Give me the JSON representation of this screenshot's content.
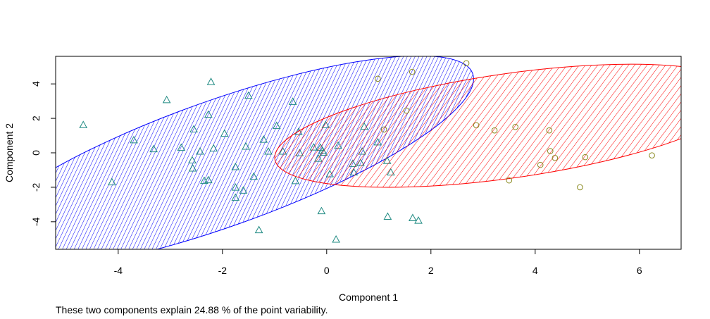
{
  "chart_data": {
    "type": "scatter",
    "title": "",
    "xlabel": "Component 1",
    "ylabel": "Component 2",
    "xlim": [
      -5.2,
      6.8
    ],
    "ylim": [
      -5.6,
      5.6
    ],
    "xticks": [
      -4,
      -2,
      0,
      2,
      4,
      6
    ],
    "yticks": [
      -4,
      -2,
      0,
      2,
      4
    ],
    "grid": false,
    "caption": "These two components explain 24.88 % of the point variability.",
    "clusters": [
      {
        "marker": "triangle",
        "color": "#0000ff",
        "point_color": "#1f8a82",
        "ellipse": {
          "cx": -2.05,
          "cy": -0.63,
          "rx": 5.15,
          "ry": 3.66,
          "rotation_deg": -19.6
        },
        "points": [
          [
            -4.67,
            1.6
          ],
          [
            -4.12,
            -1.72
          ],
          [
            -3.7,
            0.72
          ],
          [
            -3.32,
            0.2
          ],
          [
            -3.07,
            3.05
          ],
          [
            -2.79,
            0.28
          ],
          [
            -2.55,
            1.35
          ],
          [
            -2.58,
            -0.45
          ],
          [
            -2.57,
            -0.92
          ],
          [
            -2.43,
            0.06
          ],
          [
            -2.35,
            -1.64
          ],
          [
            -2.27,
            -1.6
          ],
          [
            -2.27,
            2.2
          ],
          [
            -2.22,
            4.1
          ],
          [
            -2.17,
            0.24
          ],
          [
            -1.96,
            1.1
          ],
          [
            -1.75,
            -0.84
          ],
          [
            -1.75,
            -2.03
          ],
          [
            -1.75,
            -2.62
          ],
          [
            -1.6,
            -2.2
          ],
          [
            -1.55,
            0.35
          ],
          [
            -1.5,
            3.3
          ],
          [
            -1.4,
            -1.4
          ],
          [
            -1.3,
            -4.5
          ],
          [
            -1.21,
            0.75
          ],
          [
            -1.12,
            0.06
          ],
          [
            -0.96,
            1.55
          ],
          [
            -0.84,
            0.06
          ],
          [
            -0.65,
            2.95
          ],
          [
            -0.6,
            -1.65
          ],
          [
            -0.54,
            1.2
          ],
          [
            -0.52,
            -0.03
          ],
          [
            -0.25,
            0.3
          ],
          [
            -0.16,
            -0.35
          ],
          [
            -0.12,
            0.28
          ],
          [
            -0.08,
            0.1
          ],
          [
            -0.1,
            -3.4
          ],
          [
            -0.06,
            0.0
          ],
          [
            -0.02,
            1.6
          ],
          [
            0.06,
            -1.25
          ],
          [
            0.18,
            -5.05
          ],
          [
            0.22,
            0.4
          ],
          [
            0.5,
            -0.65
          ],
          [
            0.52,
            -1.15
          ],
          [
            0.65,
            -0.6
          ],
          [
            0.68,
            0.06
          ],
          [
            0.72,
            1.5
          ],
          [
            0.98,
            0.6
          ],
          [
            1.16,
            -0.48
          ],
          [
            1.17,
            -3.72
          ],
          [
            1.23,
            -1.15
          ],
          [
            1.65,
            -3.8
          ],
          [
            1.76,
            -3.95
          ]
        ]
      },
      {
        "marker": "circle",
        "color": "#ff0000",
        "point_color": "#8a8a1f",
        "ellipse": {
          "cx": 3.51,
          "cy": 1.57,
          "rx": 4.55,
          "ry": 3.03,
          "rotation_deg": -8.1
        },
        "points": [
          [
            0.98,
            4.3
          ],
          [
            1.1,
            1.35
          ],
          [
            1.53,
            2.45
          ],
          [
            1.64,
            4.7
          ],
          [
            2.68,
            5.2
          ],
          [
            2.87,
            1.6
          ],
          [
            3.22,
            1.3
          ],
          [
            3.5,
            -1.6
          ],
          [
            3.62,
            1.5
          ],
          [
            4.1,
            -0.7
          ],
          [
            4.27,
            1.3
          ],
          [
            4.29,
            0.1
          ],
          [
            4.38,
            -0.3
          ],
          [
            4.86,
            -2.0
          ],
          [
            4.96,
            -0.25
          ],
          [
            6.24,
            -0.15
          ]
        ]
      }
    ]
  }
}
